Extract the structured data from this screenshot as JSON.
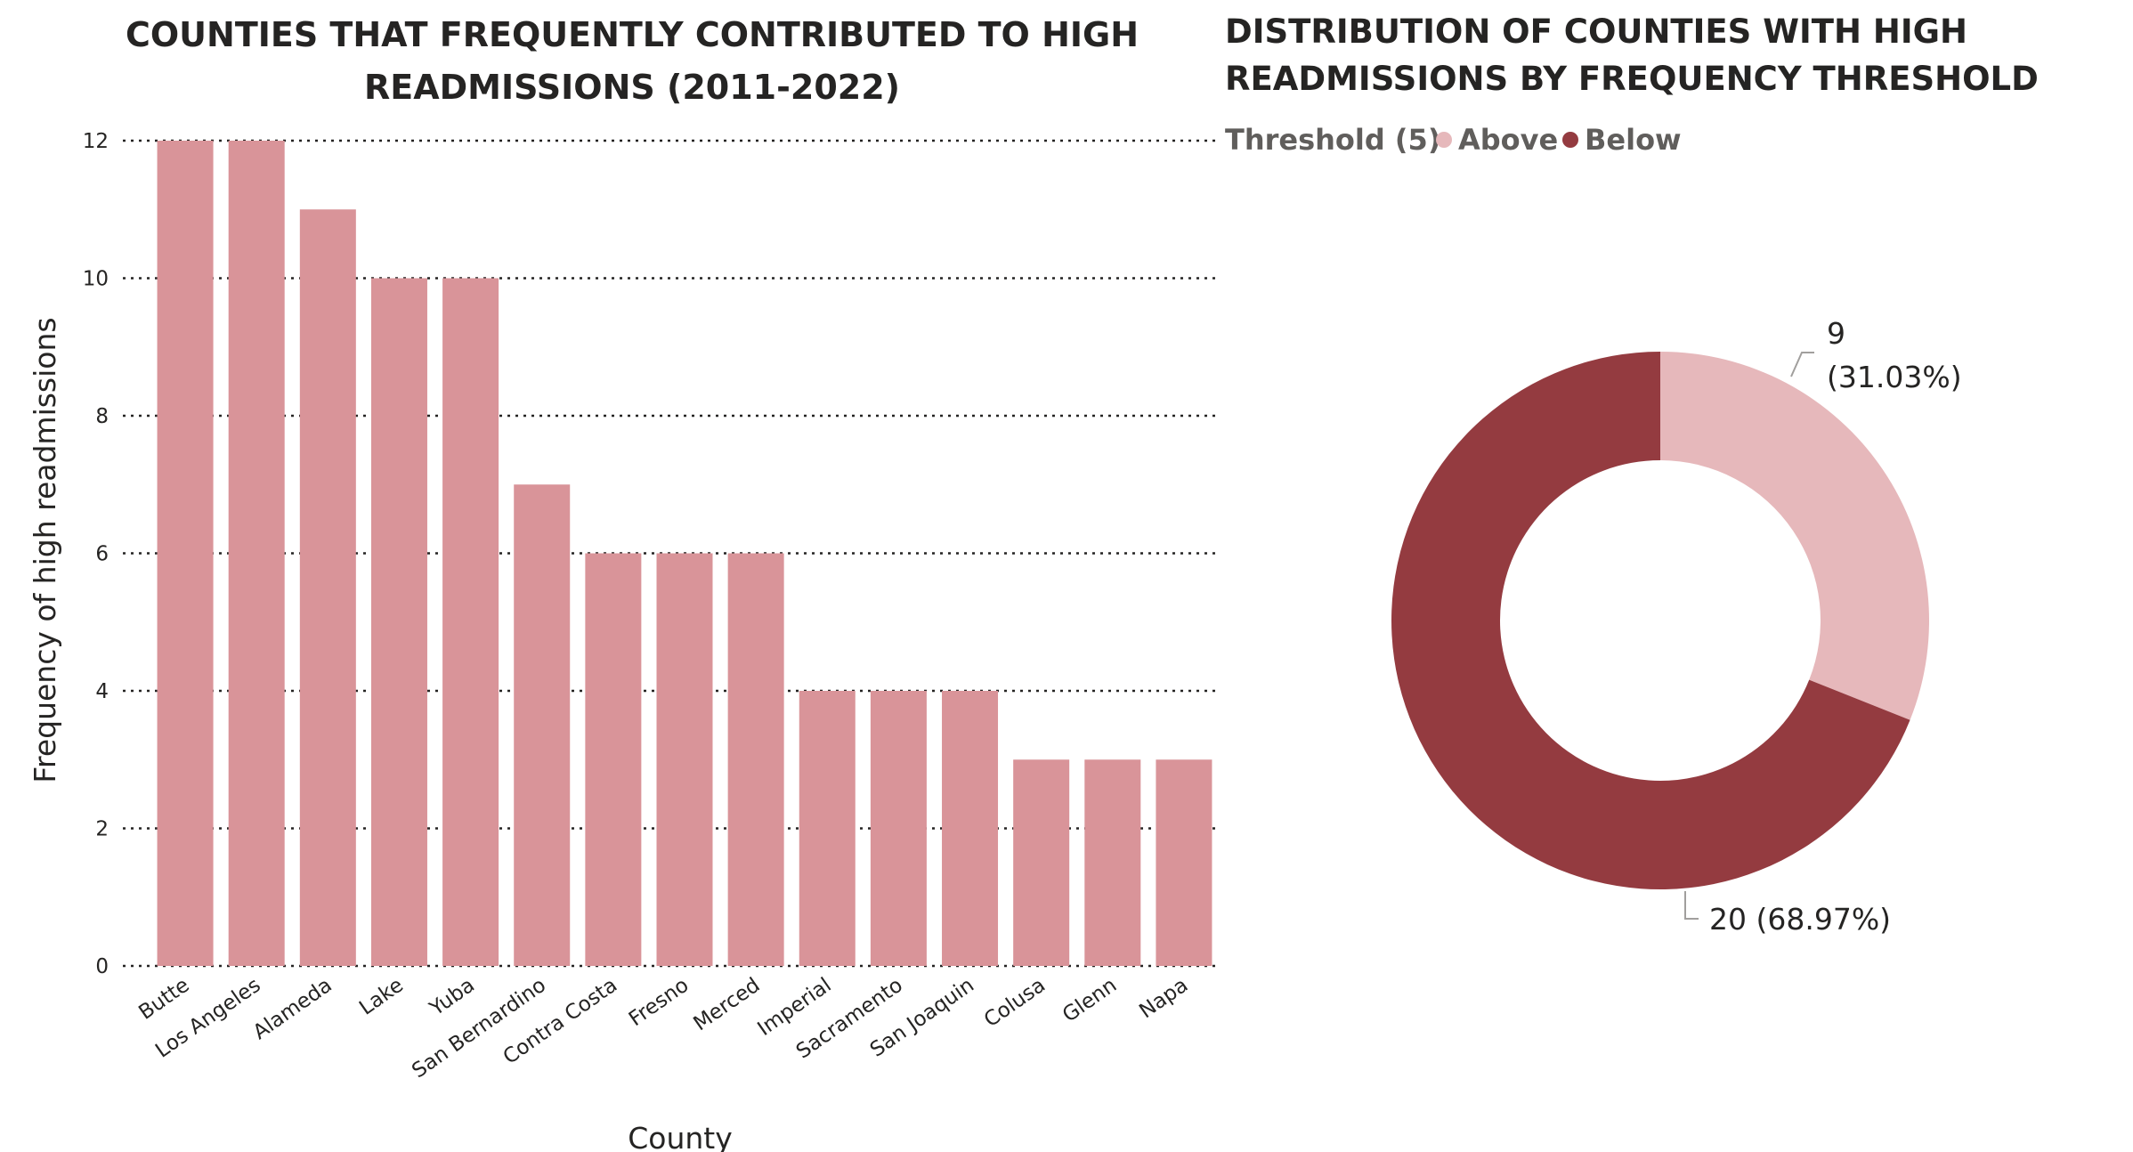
{
  "chart_data": [
    {
      "type": "bar",
      "title_lines": [
        "COUNTIES THAT FREQUENTLY CONTRIBUTED TO HIGH",
        "READMISSIONS (2011-2022)"
      ],
      "xlabel": "County",
      "ylabel": "Frequency of high readmissions",
      "categories": [
        "Butte",
        "Los Angeles",
        "Alameda",
        "Lake",
        "Yuba",
        "San Bernardino",
        "Contra Costa",
        "Fresno",
        "Merced",
        "Imperial",
        "Sacramento",
        "San Joaquin",
        "Colusa",
        "Glenn",
        "Napa"
      ],
      "values": [
        12,
        12,
        11,
        10,
        10,
        7,
        6,
        6,
        6,
        4,
        4,
        4,
        3,
        3,
        3
      ],
      "ylim": [
        0,
        12
      ],
      "yticks": [
        "0",
        "2",
        "4",
        "6",
        "8",
        "10",
        "12"
      ],
      "grid": "dotted horizontal",
      "bar_color": "#D99499"
    },
    {
      "type": "pie",
      "variant": "donut",
      "title_lines": [
        "DISTRIBUTION OF COUNTIES WITH HIGH",
        "READMISSIONS BY FREQUENCY THRESHOLD"
      ],
      "legend_title": "Threshold (5)",
      "legend_position": "top-left",
      "slices": [
        {
          "name": "Above",
          "value": 9,
          "label_lines": [
            "9",
            "(31.03%)"
          ],
          "color": "#E6B8BB"
        },
        {
          "name": "Below",
          "value": 20,
          "label_lines": [
            "20 (68.97%)"
          ],
          "color": "#943B40"
        }
      ]
    }
  ]
}
